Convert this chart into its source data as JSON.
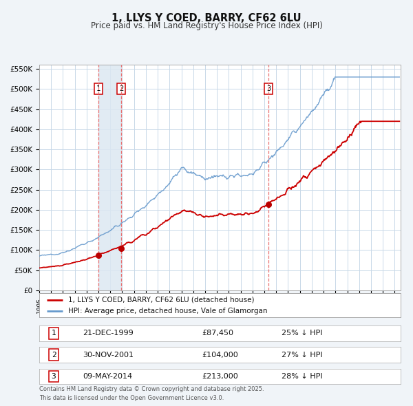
{
  "title": "1, LLYS Y COED, BARRY, CF62 6LU",
  "subtitle": "Price paid vs. HM Land Registry's House Price Index (HPI)",
  "background_color": "#f0f4f8",
  "plot_bg_color": "#ffffff",
  "grid_color": "#c8d8e8",
  "ylabel_values": [
    "£0",
    "£50K",
    "£100K",
    "£150K",
    "£200K",
    "£250K",
    "£300K",
    "£350K",
    "£400K",
    "£450K",
    "£500K",
    "£550K"
  ],
  "ylim": [
    0,
    560000
  ],
  "xlim_start": 1995.0,
  "xlim_end": 2025.5,
  "sale_dates": [
    1999.97,
    2001.91,
    2014.36
  ],
  "sale_prices": [
    87450,
    104000,
    213000
  ],
  "sale_labels": [
    "1",
    "2",
    "3"
  ],
  "vline_color": "#e87070",
  "sale_marker_color": "#bb0000",
  "legend_line1": "1, LLYS Y COED, BARRY, CF62 6LU (detached house)",
  "legend_line2": "HPI: Average price, detached house, Vale of Glamorgan",
  "table_rows": [
    [
      "1",
      "21-DEC-1999",
      "£87,450",
      "25% ↓ HPI"
    ],
    [
      "2",
      "30-NOV-2001",
      "£104,000",
      "27% ↓ HPI"
    ],
    [
      "3",
      "09-MAY-2014",
      "£213,000",
      "28% ↓ HPI"
    ]
  ],
  "footnote": "Contains HM Land Registry data © Crown copyright and database right 2025.\nThis data is licensed under the Open Government Licence v3.0.",
  "red_line_color": "#cc0000",
  "blue_line_color": "#6699cc",
  "shade_color": "#dce8f2"
}
